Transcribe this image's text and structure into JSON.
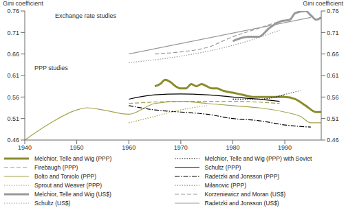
{
  "chart_data": {
    "type": "line",
    "ylabel": "Gini coefficient",
    "y2label": "Gini coefficient",
    "annotations": [
      "Exchange rate studies",
      "PPP studies"
    ],
    "xlim": [
      1940,
      1997
    ],
    "xticks": [
      1940,
      1950,
      1960,
      1970,
      1980,
      1990
    ],
    "ylim": [
      0.46,
      0.76
    ],
    "yticks": [
      0.46,
      0.51,
      0.56,
      0.61,
      0.66,
      0.71,
      0.76
    ],
    "y2lim": [
      0.46,
      0.76
    ],
    "y2ticks": [
      0.46,
      0.51,
      0.56,
      0.61,
      0.66,
      0.71,
      0.76
    ],
    "grid": false,
    "legend": "bottom",
    "series": [
      {
        "name": "Melchior, Telle and Wig (PPP)",
        "color": "#8c8c2e",
        "line_style": "thick",
        "x": [
          1965,
          1966,
          1967,
          1968,
          1969,
          1970,
          1971,
          1972,
          1973,
          1974,
          1975,
          1976,
          1977,
          1978,
          1980,
          1982,
          1984,
          1986,
          1988,
          1990,
          1992,
          1994,
          1996,
          1997
        ],
        "values": [
          0.585,
          0.59,
          0.6,
          0.595,
          0.585,
          0.58,
          0.58,
          0.59,
          0.585,
          0.59,
          0.585,
          0.58,
          0.58,
          0.575,
          0.57,
          0.565,
          0.56,
          0.56,
          0.56,
          0.56,
          0.555,
          0.54,
          0.525,
          0.525
        ]
      },
      {
        "name": "Melchior, Telle and Wig (PPP) with Soviet",
        "color": "#000000",
        "line_style": "dotted",
        "x": [
          1980,
          1985,
          1990
        ],
        "values": [
          0.555,
          0.555,
          0.565
        ]
      },
      {
        "name": "Firebaugh (PPP)",
        "color": "#a3a34a",
        "line_style": "dashed",
        "x": [
          1960,
          1970,
          1980,
          1989
        ],
        "values": [
          0.545,
          0.55,
          0.55,
          0.545
        ]
      },
      {
        "name": "Schultz (PPP)",
        "color": "#000000",
        "line_style": "solid",
        "x": [
          1960,
          1965,
          1970,
          1975,
          1980,
          1985,
          1989
        ],
        "values": [
          0.555,
          0.565,
          0.567,
          0.565,
          0.56,
          0.555,
          0.55
        ]
      },
      {
        "name": "Bolto and Toniolo (PPP)",
        "color": "#a3a34a",
        "line_style": "solid",
        "x": [
          1940,
          1945,
          1950,
          1952,
          1955,
          1960,
          1965,
          1970,
          1975,
          1980,
          1985,
          1990,
          1993,
          1995,
          1997
        ],
        "values": [
          0.46,
          0.5,
          0.53,
          0.535,
          0.53,
          0.52,
          0.545,
          0.55,
          0.545,
          0.54,
          0.535,
          0.525,
          0.515,
          0.5,
          0.5
        ]
      },
      {
        "name": "Radetzki and Jonsson (PPP)",
        "color": "#000000",
        "line_style": "dashdot",
        "x": [
          1960,
          1965,
          1970,
          1975,
          1980,
          1985,
          1990,
          1995
        ],
        "values": [
          0.54,
          0.53,
          0.525,
          0.52,
          0.51,
          0.505,
          0.495,
          0.49
        ]
      },
      {
        "name": "Sprout and Weaver (PPP)",
        "color": "#a3a34a",
        "line_style": "dotted",
        "x": [
          1960,
          1965,
          1970,
          1975
        ],
        "values": [
          0.5,
          0.515,
          0.53,
          0.54
        ]
      },
      {
        "name": "Milanovic (PPP)",
        "color": "#666666",
        "line_style": "dotted",
        "x": [
          1988,
          1993
        ],
        "values": [
          0.56,
          0.575
        ]
      },
      {
        "name": "Melchior, Telle and Wig (US$)",
        "color": "#999999",
        "line_style": "thick",
        "x": [
          1980,
          1983,
          1985,
          1987,
          1989,
          1991,
          1992,
          1994,
          1995,
          1996,
          1997
        ],
        "values": [
          0.69,
          0.7,
          0.7,
          0.72,
          0.735,
          0.74,
          0.755,
          0.76,
          0.75,
          0.74,
          0.745
        ]
      },
      {
        "name": "Korzeniewicz and Moran (US$)",
        "color": "#999999",
        "line_style": "dashed",
        "x": [
          1965,
          1970,
          1975,
          1980,
          1985,
          1990
        ],
        "values": [
          0.66,
          0.665,
          0.675,
          0.7,
          0.72,
          0.74
        ]
      },
      {
        "name": "Schultz (US$)",
        "color": "#999999",
        "line_style": "dotted",
        "x": [
          1960,
          1970,
          1980,
          1989
        ],
        "values": [
          0.64,
          0.655,
          0.68,
          0.715
        ]
      },
      {
        "name": "Radetzki and Jonsson (US$)",
        "color": "#999999",
        "line_style": "solid",
        "x": [
          1960,
          1995
        ],
        "values": [
          0.66,
          0.745
        ]
      }
    ]
  }
}
